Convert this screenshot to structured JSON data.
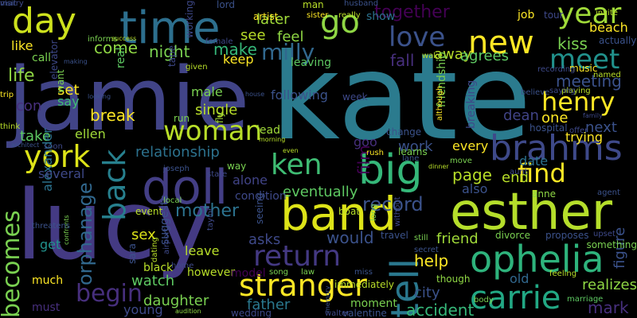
{
  "wordcloud": {
    "background": "#000000",
    "words": [
      {
        "text": "kate",
        "color": "#2b7b8e",
        "vertical": false
      },
      {
        "text": "jamie",
        "color": "#414487",
        "vertical": false
      },
      {
        "text": "lucy",
        "color": "#443a83",
        "vertical": false
      },
      {
        "text": "esther",
        "color": "#b5de2b",
        "vertical": false
      },
      {
        "text": "time",
        "color": "#2d6f8e",
        "vertical": false
      },
      {
        "text": "band",
        "color": "#dde318",
        "vertical": false
      },
      {
        "text": "big",
        "color": "#35b779",
        "vertical": false
      },
      {
        "text": "day",
        "color": "#cde11d",
        "vertical": false
      },
      {
        "text": "doll",
        "color": "#433e85",
        "vertical": false
      },
      {
        "text": "brahms",
        "color": "#3e4989",
        "vertical": false
      },
      {
        "text": "ophelia",
        "color": "#2eb37c",
        "vertical": false
      },
      {
        "text": "tell",
        "color": "#2a788e",
        "vertical": true
      },
      {
        "text": "carrie",
        "color": "#22a884",
        "vertical": false
      },
      {
        "text": "stranger",
        "color": "#fde725",
        "vertical": false
      },
      {
        "text": "woman",
        "color": "#b8de29",
        "vertical": false
      },
      {
        "text": "york",
        "color": "#dde318",
        "vertical": false
      },
      {
        "text": "go",
        "color": "#8fd744",
        "vertical": false
      },
      {
        "text": "love",
        "color": "#3b528b",
        "vertical": false
      },
      {
        "text": "new",
        "color": "#fde725",
        "vertical": false
      },
      {
        "text": "meet",
        "color": "#21918c",
        "vertical": false
      },
      {
        "text": "find",
        "color": "#fde725",
        "vertical": false
      },
      {
        "text": "henry",
        "color": "#fde725",
        "vertical": false
      },
      {
        "text": "ken",
        "color": "#3fbc73",
        "vertical": false
      },
      {
        "text": "year",
        "color": "#a0da39",
        "vertical": false
      },
      {
        "text": "return",
        "color": "#443983",
        "vertical": false
      },
      {
        "text": "becomes",
        "color": "#7ad151",
        "vertical": true
      },
      {
        "text": "back",
        "color": "#27808e",
        "vertical": true
      },
      {
        "text": "begin",
        "color": "#472f7d",
        "vertical": false
      },
      {
        "text": "together",
        "color": "#440154",
        "vertical": false
      },
      {
        "text": "milly",
        "color": "#31688e",
        "vertical": false
      },
      {
        "text": "mother",
        "color": "#2c728e",
        "vertical": false
      },
      {
        "text": "help",
        "color": "#fde725",
        "vertical": false
      },
      {
        "text": "page",
        "color": "#b8de29",
        "vertical": false
      },
      {
        "text": "record",
        "color": "#3b528b",
        "vertical": false
      },
      {
        "text": "come",
        "color": "#8fd744",
        "vertical": false
      },
      {
        "text": "life",
        "color": "#8fd744",
        "vertical": false
      },
      {
        "text": "break",
        "color": "#fde725",
        "vertical": false
      },
      {
        "text": "take",
        "color": "#5ec962",
        "vertical": false
      },
      {
        "text": "meeting",
        "color": "#3b528b",
        "vertical": false
      },
      {
        "text": "make",
        "color": "#35b779",
        "vertical": false
      },
      {
        "text": "night",
        "color": "#7ad151",
        "vertical": false
      },
      {
        "text": "relationship",
        "color": "#2c728e",
        "vertical": false
      },
      {
        "text": "orphanage",
        "color": "#31688e",
        "vertical": true
      },
      {
        "text": "one",
        "color": "#fde725",
        "vertical": false
      },
      {
        "text": "next",
        "color": "#3b528b",
        "vertical": false
      },
      {
        "text": "end",
        "color": "#b8de29",
        "vertical": false
      },
      {
        "text": "away",
        "color": "#b8de29",
        "vertical": false
      },
      {
        "text": "agrees",
        "color": "#5ec962",
        "vertical": false
      },
      {
        "text": "kiss",
        "color": "#7ad151",
        "vertical": false
      },
      {
        "text": "see",
        "color": "#b8de29",
        "vertical": false
      },
      {
        "text": "later",
        "color": "#a0da39",
        "vertical": false
      },
      {
        "text": "feel",
        "color": "#8fd744",
        "vertical": false
      },
      {
        "text": "fall",
        "color": "#472f7d",
        "vertical": false
      },
      {
        "text": "film",
        "color": "#440154",
        "vertical": true
      },
      {
        "text": "eventually",
        "color": "#5ec962",
        "vertical": false
      },
      {
        "text": "would",
        "color": "#3b528b",
        "vertical": false
      },
      {
        "text": "asks",
        "color": "#3e4989",
        "vertical": false
      },
      {
        "text": "friend",
        "color": "#a0da39",
        "vertical": false
      },
      {
        "text": "watch",
        "color": "#5ec962",
        "vertical": false
      },
      {
        "text": "daughter",
        "color": "#7ad151",
        "vertical": false
      },
      {
        "text": "father",
        "color": "#2a788e",
        "vertical": false
      },
      {
        "text": "city",
        "color": "#3b528b",
        "vertical": false
      },
      {
        "text": "accident",
        "color": "#35b779",
        "vertical": false
      },
      {
        "text": "mark",
        "color": "#472f7d",
        "vertical": false
      },
      {
        "text": "old",
        "color": "#31688e",
        "vertical": false
      },
      {
        "text": "realizes",
        "color": "#8fd744",
        "vertical": false
      },
      {
        "text": "figure",
        "color": "#3b528b",
        "vertical": true
      },
      {
        "text": "beach",
        "color": "#fde725",
        "vertical": false
      },
      {
        "text": "job",
        "color": "#fde725",
        "vertical": false
      },
      {
        "text": "show",
        "color": "#2c728e",
        "vertical": false
      },
      {
        "text": "like",
        "color": "#fde725",
        "vertical": false
      },
      {
        "text": "call",
        "color": "#7ad151",
        "vertical": false
      },
      {
        "text": "set",
        "color": "#fde725",
        "vertical": false
      },
      {
        "text": "con",
        "color": "#472f7d",
        "vertical": false
      },
      {
        "text": "say",
        "color": "#3fbc73",
        "vertical": false
      },
      {
        "text": "keep",
        "color": "#fde725",
        "vertical": false
      },
      {
        "text": "leaving",
        "color": "#5ec962",
        "vertical": false
      },
      {
        "text": "following",
        "color": "#3b528b",
        "vertical": false
      },
      {
        "text": "dean",
        "color": "#414487",
        "vertical": false
      },
      {
        "text": "work",
        "color": "#3b528b",
        "vertical": false
      },
      {
        "text": "every",
        "color": "#fde725",
        "vertical": false
      },
      {
        "text": "goo",
        "color": "#472f7d",
        "vertical": false
      },
      {
        "text": "date",
        "color": "#2c728e",
        "vertical": false
      },
      {
        "text": "trying",
        "color": "#fde725",
        "vertical": false
      },
      {
        "text": "also",
        "color": "#3b528b",
        "vertical": false
      },
      {
        "text": "alone",
        "color": "#414487",
        "vertical": false
      },
      {
        "text": "condition",
        "color": "#3e4989",
        "vertical": false
      },
      {
        "text": "sex",
        "color": "#dde318",
        "vertical": false
      },
      {
        "text": "ellen",
        "color": "#a0da39",
        "vertical": false
      },
      {
        "text": "alexander",
        "color": "#2c728e",
        "vertical": true
      },
      {
        "text": "several",
        "color": "#3e4989",
        "vertical": false
      },
      {
        "text": "get",
        "color": "#21918c",
        "vertical": false
      },
      {
        "text": "leave",
        "color": "#b8de29",
        "vertical": false
      },
      {
        "text": "suggests",
        "color": "#3b528b",
        "vertical": true
      },
      {
        "text": "young",
        "color": "#3e4989",
        "vertical": false
      },
      {
        "text": "moment",
        "color": "#7ad151",
        "vertical": false
      },
      {
        "text": "much",
        "color": "#fde725",
        "vertical": false
      },
      {
        "text": "must",
        "color": "#472f7d",
        "vertical": false
      },
      {
        "text": "valentine",
        "color": "#3b528b",
        "vertical": false
      },
      {
        "text": "wedding",
        "color": "#3e4989",
        "vertical": false
      },
      {
        "text": "audition",
        "color": "#8fd744",
        "vertical": false
      },
      {
        "text": "however",
        "color": "#b8de29",
        "vertical": false
      },
      {
        "text": "model",
        "color": "#440154",
        "vertical": false
      },
      {
        "text": "song",
        "color": "#7ad151",
        "vertical": false
      },
      {
        "text": "law",
        "color": "#7ad151",
        "vertical": false
      },
      {
        "text": "miss",
        "color": "#3b528b",
        "vertical": false
      },
      {
        "text": "immediately",
        "color": "#b8de29",
        "vertical": false
      },
      {
        "text": "travel",
        "color": "#3b528b",
        "vertical": false
      },
      {
        "text": "though",
        "color": "#8fd744",
        "vertical": false
      },
      {
        "text": "body",
        "color": "#7ad151",
        "vertical": false
      },
      {
        "text": "feeling",
        "color": "#b8de29",
        "vertical": false
      },
      {
        "text": "marriage",
        "color": "#5ec962",
        "vertical": false
      },
      {
        "text": "divorce",
        "color": "#7ad151",
        "vertical": false
      },
      {
        "text": "proposes",
        "color": "#3b528b",
        "vertical": false
      },
      {
        "text": "upset",
        "color": "#3e4989",
        "vertical": false
      },
      {
        "text": "something",
        "color": "#7ad151",
        "vertical": false
      },
      {
        "text": "anne",
        "color": "#8fd744",
        "vertical": false
      },
      {
        "text": "agent",
        "color": "#3b528b",
        "vertical": false
      },
      {
        "text": "hospital",
        "color": "#3b528b",
        "vertical": false
      },
      {
        "text": "family",
        "color": "#3e4989",
        "vertical": false
      },
      {
        "text": "actually",
        "color": "#3b528b",
        "vertical": false
      },
      {
        "text": "named",
        "color": "#b8de29",
        "vertical": false
      },
      {
        "text": "music",
        "color": "#fde725",
        "vertical": false
      },
      {
        "text": "recording",
        "color": "#3e4989",
        "vertical": false
      },
      {
        "text": "tour",
        "color": "#3e4989",
        "vertical": false
      },
      {
        "text": "playing",
        "color": "#b8de29",
        "vertical": false
      },
      {
        "text": "invite",
        "color": "#b8de29",
        "vertical": false
      },
      {
        "text": "working",
        "color": "#3e4989",
        "vertical": true
      },
      {
        "text": "lord",
        "color": "#3b528b",
        "vertical": false
      },
      {
        "text": "artist",
        "color": "#fde725",
        "vertical": false
      },
      {
        "text": "sister",
        "color": "#fde725",
        "vertical": false
      },
      {
        "text": "man",
        "color": "#b8de29",
        "vertical": false
      },
      {
        "text": "husband",
        "color": "#3b528b",
        "vertical": false
      },
      {
        "text": "really",
        "color": "#b8de29",
        "vertical": false
      },
      {
        "text": "informs",
        "color": "#7ad151",
        "vertical": false
      },
      {
        "text": "success",
        "color": "#b8de29",
        "vertical": false
      },
      {
        "text": "making",
        "color": "#3b528b",
        "vertical": false
      },
      {
        "text": "real",
        "color": "#5ec962",
        "vertical": true
      },
      {
        "text": "tape",
        "color": "#3e4989",
        "vertical": true
      },
      {
        "text": "given",
        "color": "#b8de29",
        "vertical": false
      },
      {
        "text": "female",
        "color": "#3e4989",
        "vertical": false
      },
      {
        "text": "male",
        "color": "#7ad151",
        "vertical": false
      },
      {
        "text": "single",
        "color": "#b8de29",
        "vertical": false
      },
      {
        "text": "run",
        "color": "#7ad151",
        "vertical": false
      },
      {
        "text": "fly",
        "color": "#a0da39",
        "vertical": true
      },
      {
        "text": "house",
        "color": "#3b528b",
        "vertical": false
      },
      {
        "text": "lead",
        "color": "#a0da39",
        "vertical": false
      },
      {
        "text": "morning",
        "color": "#b8de29",
        "vertical": false
      },
      {
        "text": "even",
        "color": "#b8de29",
        "vertical": false
      },
      {
        "text": "way",
        "color": "#7ad151",
        "vertical": false
      },
      {
        "text": "joseph",
        "color": "#3b528b",
        "vertical": false
      },
      {
        "text": "state",
        "color": "#3e4989",
        "vertical": false
      },
      {
        "text": "local",
        "color": "#7ad151",
        "vertical": false
      },
      {
        "text": "event",
        "color": "#b8de29",
        "vertical": false
      },
      {
        "text": "sara",
        "color": "#3b528b",
        "vertical": true
      },
      {
        "text": "black",
        "color": "#b8de29",
        "vertical": false
      },
      {
        "text": "home",
        "color": "#3e4989",
        "vertical": false
      },
      {
        "text": "airport",
        "color": "#3e4989",
        "vertical": true
      },
      {
        "text": "dating",
        "color": "#b8de29",
        "vertical": true
      },
      {
        "text": "confronts",
        "color": "#7ad151",
        "vertical": true
      },
      {
        "text": "threatens",
        "color": "#3b528b",
        "vertical": false
      },
      {
        "text": "taylor",
        "color": "#3e4989",
        "vertical": true
      },
      {
        "text": "seeing",
        "color": "#3b528b",
        "vertical": true
      },
      {
        "text": "boat",
        "color": "#b8de29",
        "vertical": false
      },
      {
        "text": "long",
        "color": "#7ad151",
        "vertical": true
      },
      {
        "text": "without",
        "color": "#3e4989",
        "vertical": true
      },
      {
        "text": "still",
        "color": "#7ad151",
        "vertical": false
      },
      {
        "text": "secret",
        "color": "#3b528b",
        "vertical": false
      },
      {
        "text": "week",
        "color": "#3e4989",
        "vertical": false
      },
      {
        "text": "change",
        "color": "#3b528b",
        "vertical": false
      },
      {
        "text": "learns",
        "color": "#7ad151",
        "vertical": false
      },
      {
        "text": "breaking",
        "color": "#3e4989",
        "vertical": true
      },
      {
        "text": "friendship",
        "color": "#7ad151",
        "vertical": true
      },
      {
        "text": "although",
        "color": "#fde725",
        "vertical": true
      },
      {
        "text": "rush",
        "color": "#fde725",
        "vertical": false
      },
      {
        "text": "lane",
        "color": "#3b528b",
        "vertical": false
      },
      {
        "text": "move",
        "color": "#7ad151",
        "vertical": false
      },
      {
        "text": "dinner",
        "color": "#b8de29",
        "vertical": false
      },
      {
        "text": "aunt",
        "color": "#3e4989",
        "vertical": false
      },
      {
        "text": "wake",
        "color": "#b8de29",
        "vertical": false
      },
      {
        "text": "believe",
        "color": "#3b528b",
        "vertical": false
      },
      {
        "text": "saying",
        "color": "#3e4989",
        "vertical": false
      },
      {
        "text": "offer",
        "color": "#3e4989",
        "vertical": false
      },
      {
        "text": "want",
        "color": "#7ad151",
        "vertical": true
      },
      {
        "text": "elevator",
        "color": "#3e4989",
        "vertical": true
      },
      {
        "text": "trip",
        "color": "#fde725",
        "vertical": false
      },
      {
        "text": "think",
        "color": "#b8de29",
        "vertical": false
      },
      {
        "text": "architect",
        "color": "#3b528b",
        "vertical": false
      },
      {
        "text": "soon",
        "color": "#3e4989",
        "vertical": false
      },
      {
        "text": "looking",
        "color": "#3b528b",
        "vertical": false
      },
      {
        "text": "walter",
        "color": "#3e4989",
        "vertical": false
      },
      {
        "text": "memory",
        "color": "#3b528b",
        "vertical": true
      },
      {
        "text": "visit",
        "color": "#3b528b",
        "vertical": false
      },
      {
        "text": "marry",
        "color": "#3e4989",
        "vertical": false
      }
    ]
  }
}
